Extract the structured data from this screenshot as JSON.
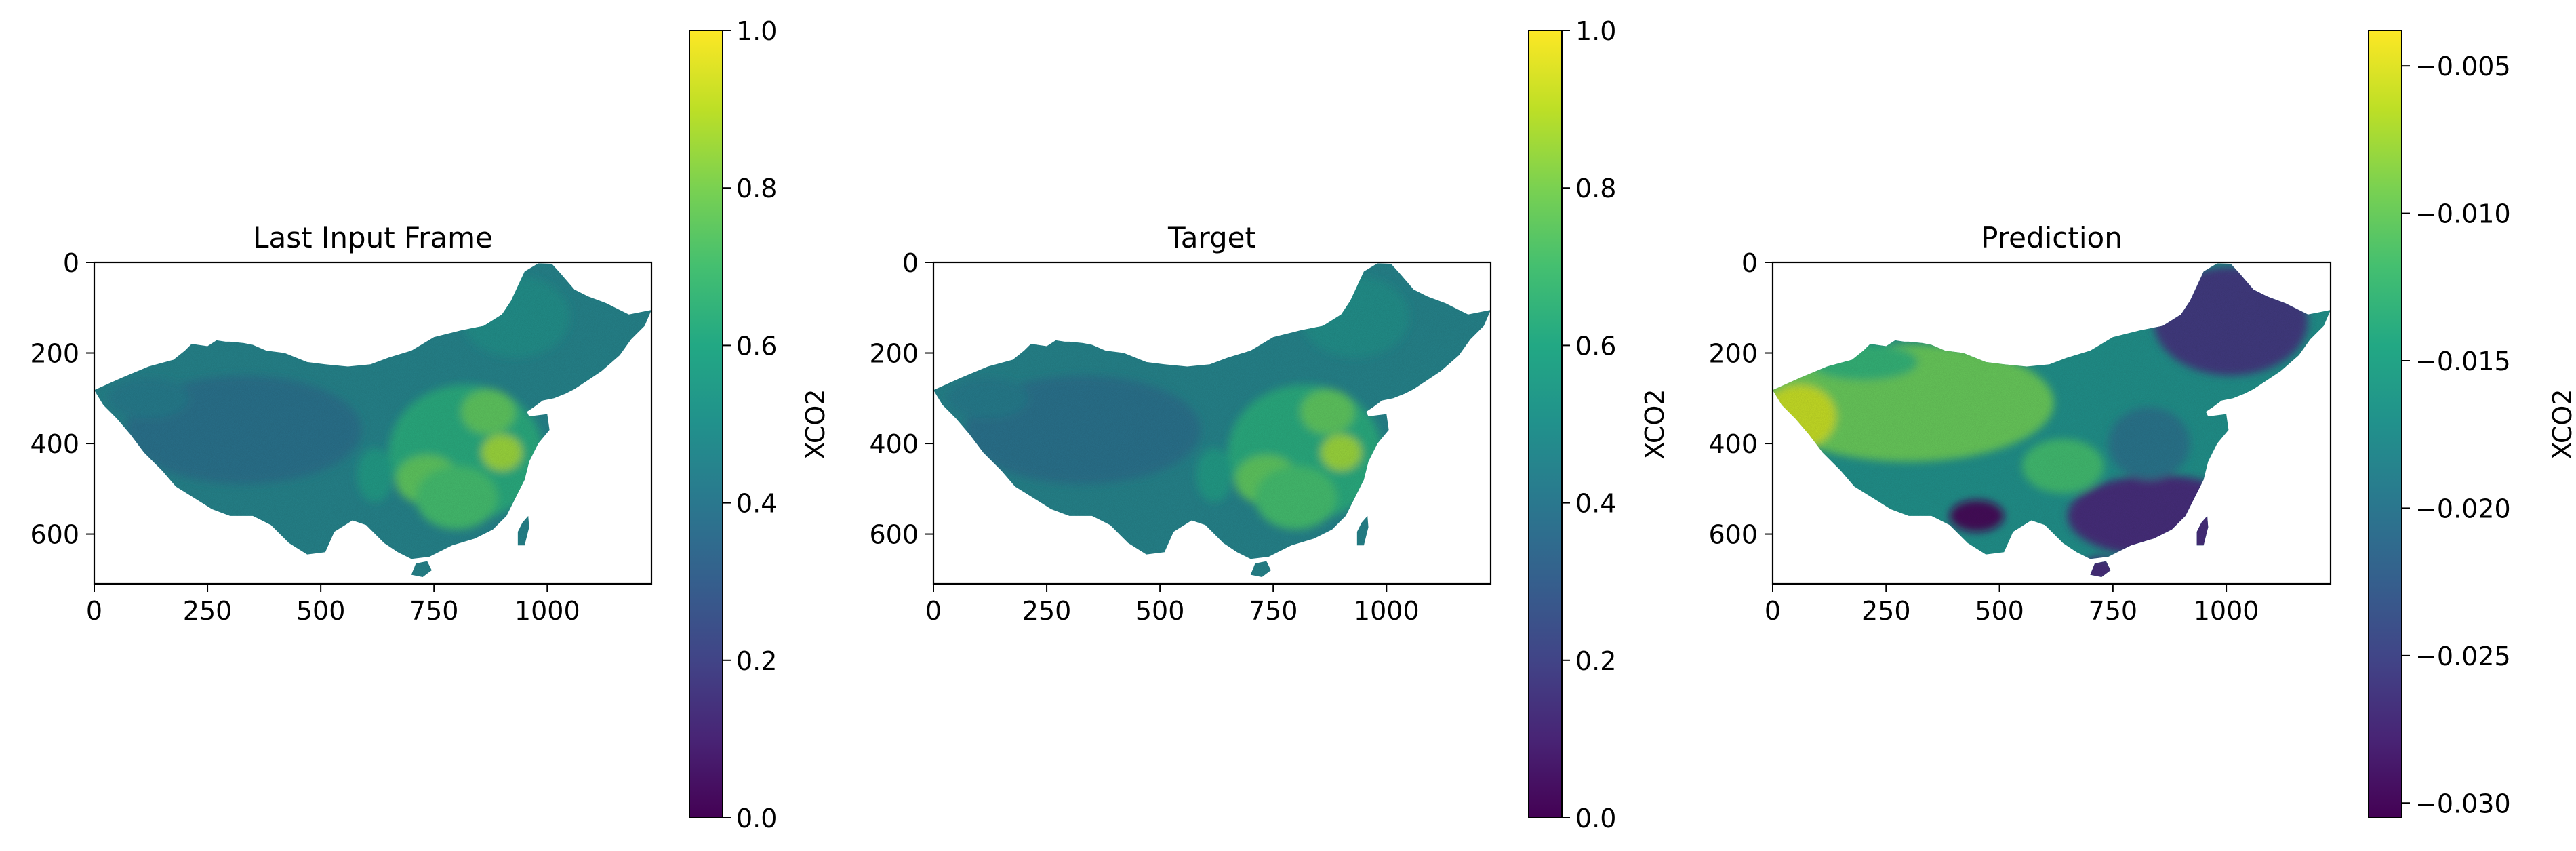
{
  "chart_data": [
    {
      "type": "heatmap",
      "title": "Last Input Frame",
      "subject": "XCO2 map over China",
      "x_ticks": [
        0,
        250,
        500,
        750,
        1000
      ],
      "y_ticks": [
        0,
        200,
        400,
        600
      ],
      "xlim": [
        0,
        1230
      ],
      "ylim": [
        710,
        0
      ],
      "colorbar": {
        "label": "XCO2",
        "colormap": "viridis",
        "range": [
          0.0,
          1.0
        ],
        "ticks": [
          "0.0",
          "0.2",
          "0.4",
          "0.6",
          "0.8",
          "1.0"
        ]
      },
      "value_summary": {
        "background_typical": 0.45,
        "western_basin": 0.38,
        "east_central_high": 0.75,
        "peak": 0.85
      }
    },
    {
      "type": "heatmap",
      "title": "Target",
      "subject": "XCO2 map over China",
      "x_ticks": [
        0,
        250,
        500,
        750,
        1000
      ],
      "y_ticks": [
        0,
        200,
        400,
        600
      ],
      "xlim": [
        0,
        1230
      ],
      "ylim": [
        710,
        0
      ],
      "colorbar": {
        "label": "XCO2",
        "colormap": "viridis",
        "range": [
          0.0,
          1.0
        ],
        "ticks": [
          "0.0",
          "0.2",
          "0.4",
          "0.6",
          "0.8",
          "1.0"
        ]
      },
      "value_summary": {
        "background_typical": 0.45,
        "western_basin": 0.38,
        "east_central_high": 0.75,
        "peak": 0.85
      }
    },
    {
      "type": "heatmap",
      "title": "Prediction",
      "subject": "XCO2 map over China",
      "x_ticks": [
        0,
        250,
        500,
        750,
        1000
      ],
      "y_ticks": [
        0,
        200,
        400,
        600
      ],
      "xlim": [
        0,
        1230
      ],
      "ylim": [
        710,
        0
      ],
      "colorbar": {
        "label": "XCO2",
        "colormap": "viridis",
        "range": [
          -0.0305,
          -0.0038
        ],
        "ticks": [
          "−0.030",
          "−0.025",
          "−0.020",
          "−0.015",
          "−0.010",
          "−0.005"
        ]
      },
      "value_summary": {
        "far_west_high": -0.006,
        "northwest_typical": -0.01,
        "central_typical": -0.017,
        "northeast_low": -0.026,
        "southeast_low": -0.027,
        "minimum": -0.03
      }
    }
  ]
}
